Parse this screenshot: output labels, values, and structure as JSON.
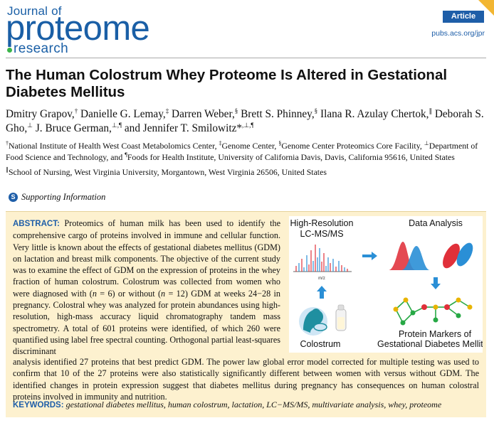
{
  "header": {
    "logo_line1": "Journal of",
    "logo_line2": "proteome",
    "logo_line3": "research",
    "badge": "Article",
    "url": "pubs.acs.org/jpr"
  },
  "article": {
    "title": "The Human Colostrum Whey Proteome Is Altered in Gestational Diabetes Mellitus",
    "authors": [
      {
        "name": "Dmitry Grapov,",
        "aff": "†"
      },
      {
        "name": "Danielle G. Lemay,",
        "aff": "‡"
      },
      {
        "name": "Darren Weber,",
        "aff": "§"
      },
      {
        "name": "Brett S. Phinney,",
        "aff": "§"
      },
      {
        "name": "Ilana R. Azulay Chertok,",
        "aff": "∥"
      },
      {
        "name": "Deborah S. Gho,",
        "aff": "⊥"
      },
      {
        "name": "J. Bruce German,",
        "aff": "⊥,¶"
      },
      {
        "name": "and Jennifer T. Smilowitz*",
        "aff": ",⊥,¶"
      }
    ],
    "affiliations": [
      {
        "mark": "†",
        "text": "National Institute of Health West Coast Metabolomics Center,"
      },
      {
        "mark": "‡",
        "text": "Genome Center,"
      },
      {
        "mark": "§",
        "text": "Genome Center Proteomics Core Facility,"
      },
      {
        "mark": "⊥",
        "text": "Department of Food Science and Technology, and"
      },
      {
        "mark": "¶",
        "text": "Foods for Health Institute, University of California Davis, Davis, California 95616, United States"
      }
    ],
    "affiliation2": {
      "mark": "∥",
      "text": "School of Nursing, West Virginia University, Morgantown, West Virginia 26506, United States"
    },
    "supporting_icon": "S",
    "supporting_label": "Supporting Information"
  },
  "abstract": {
    "label": "ABSTRACT:",
    "lead": [
      {
        "t": " Proteomics of human milk has been used to identify the comprehensive cargo of proteins involved in immune and cellular function. Very little is known about the effects of gestational diabetes mellitus (GDM) on lactation and breast milk components. The objective of the current study was to examine the effect of GDM on the expression of proteins in the whey fraction of human colostrum. Colostrum was collected from women who were diagnosed with ("
      },
      {
        "t": "n",
        "i": true
      },
      {
        "t": " = 6) or without ("
      },
      {
        "t": "n",
        "i": true
      },
      {
        "t": " = 12) GDM at weeks 24−28 in pregnancy. Colostral whey was analyzed for protein abundances using high-resolution, high-mass accuracy liquid chromatography tandem mass spectrometry. A total of 601 proteins were identified, of which 260 were quantified using label free spectral counting. Orthogonal partial least-squares discriminant"
      }
    ],
    "full": "analysis identified 27 proteins that best predict GDM. The power law global error model corrected for multiple testing was used to confirm that 10 of the 27 proteins were also statistically significantly different between women with versus without GDM. The identified changes in protein expression suggest that diabetes mellitus during pregnancy has consequences on human colostral proteins involved in immunity and nutrition.",
    "keywords_label": "KEYWORDS:",
    "keywords": "gestational diabetes mellitus, human colostrum, lactation, LC−MS/MS, multivariate analysis, whey, proteome"
  },
  "graphic": {
    "label_hr1": "High-Resolution",
    "label_hr2": "LC-MS/MS",
    "label_data": "Data Analysis",
    "label_colostrum": "Colostrum",
    "label_markers1": "Protein Markers of",
    "label_markers2": "Gestational Diabetes Mellitus",
    "axis_mz": "m/z",
    "colors": {
      "blue": "#2a8fd6",
      "red": "#e0303a",
      "teal": "#1f8fa0",
      "green": "#27a845",
      "yellow": "#e8b400"
    }
  }
}
